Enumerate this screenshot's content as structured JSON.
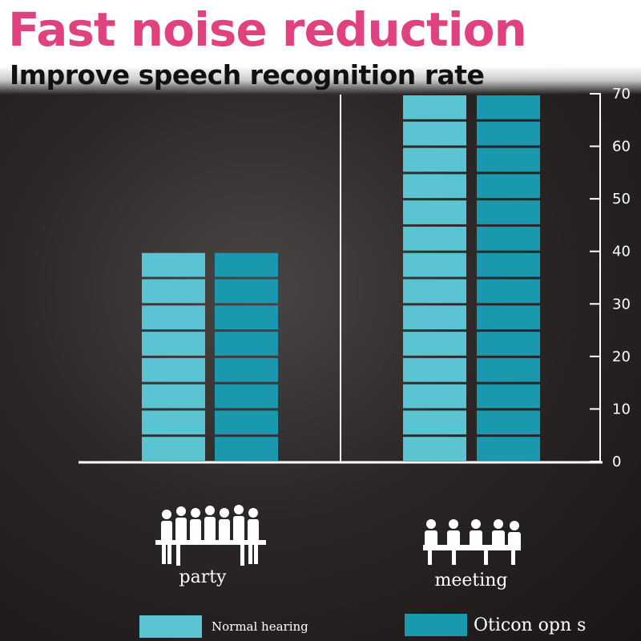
{
  "header": {
    "title": "Fast noise reduction",
    "subtitle": "Improve speech recognition rate"
  },
  "colors": {
    "title": "#e0427f",
    "normal_hearing": "#5ac4d2",
    "oticon": "#1a98ad",
    "axis": "#ffffff"
  },
  "chart_data": {
    "type": "bar",
    "categories": [
      "party",
      "meeting"
    ],
    "series": [
      {
        "name": "Normal hearing",
        "values": [
          40,
          70
        ]
      },
      {
        "name": "Oticon opn s",
        "values": [
          40,
          70
        ]
      }
    ],
    "yticks": [
      0,
      10,
      20,
      30,
      40,
      50,
      60,
      70
    ],
    "ylim": [
      0,
      70
    ],
    "y_axis_side": "right",
    "grid": false,
    "legend_position": "bottom"
  },
  "icons": {
    "party": "party-people-icon",
    "meeting": "meeting-table-icon"
  }
}
